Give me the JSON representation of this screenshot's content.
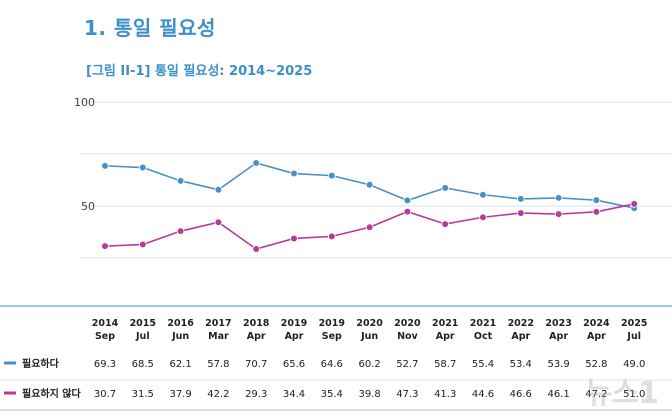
{
  "page": {
    "heading": "1.  통일 필요성",
    "subheading": "[그림 II-1] 통일 필요성: 2014~2025",
    "watermark": "뉴스1"
  },
  "colors": {
    "accent": "#3d8fc9",
    "series_needed": "#4a90c8",
    "series_not_needed": "#b8399a",
    "gridline": "#cfe3f0"
  },
  "chart_data": {
    "type": "line",
    "title": "[그림 II-1] 통일 필요성: 2014~2025",
    "y_ticks": [
      "100",
      "50"
    ],
    "ylim": [
      25,
      100
    ],
    "grid": true,
    "legend_position": "table-below",
    "x_years": [
      "2014",
      "2015",
      "2016",
      "2017",
      "2018",
      "2019",
      "2019",
      "2020",
      "2020",
      "2021",
      "2021",
      "2022",
      "2023",
      "2024",
      "2025"
    ],
    "x_months": [
      "Sep",
      "Jul",
      "Jun",
      "Mar",
      "Apr",
      "Apr",
      "Sep",
      "Jun",
      "Nov",
      "Apr",
      "Oct",
      "Apr",
      "Apr",
      "Apr",
      "Jul"
    ],
    "series": [
      {
        "name": "필요하다",
        "color": "#4a90c8",
        "values": [
          69.3,
          68.5,
          62.1,
          57.8,
          70.7,
          65.6,
          64.6,
          60.2,
          52.7,
          58.7,
          55.4,
          53.4,
          53.9,
          52.8,
          49.0
        ],
        "labels": [
          "69.3",
          "68.5",
          "62.1",
          "57.8",
          "70.7",
          "65.6",
          "64.6",
          "60.2",
          "52.7",
          "58.7",
          "55.4",
          "53.4",
          "53.9",
          "52.8",
          "49.0"
        ]
      },
      {
        "name": "필요하지 않다",
        "color": "#b8399a",
        "values": [
          30.7,
          31.5,
          37.9,
          42.2,
          29.3,
          34.4,
          35.4,
          39.8,
          47.3,
          41.3,
          44.6,
          46.6,
          46.1,
          47.2,
          51.0
        ],
        "labels": [
          "30.7",
          "31.5",
          "37.9",
          "42.2",
          "29.3",
          "34.4",
          "35.4",
          "39.8",
          "47.3",
          "41.3",
          "44.6",
          "46.6",
          "46.1",
          "47.2",
          "51.0"
        ]
      }
    ]
  }
}
